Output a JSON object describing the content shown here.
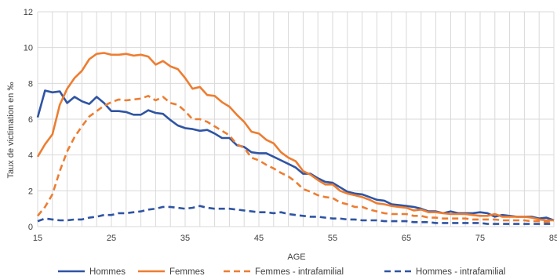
{
  "chart_data": {
    "type": "line",
    "title": "",
    "xlabel": "AGE",
    "ylabel": "Taux de victimation en ‰",
    "xlim": [
      15,
      85
    ],
    "ylim": [
      0,
      12
    ],
    "x_ticks": [
      15,
      25,
      35,
      45,
      55,
      65,
      75,
      85
    ],
    "y_ticks": [
      0,
      2,
      4,
      6,
      8,
      10,
      12
    ],
    "grid": "vertical-and-horizontal",
    "legend_position": "bottom",
    "x": [
      15,
      16,
      17,
      18,
      19,
      20,
      21,
      22,
      23,
      24,
      25,
      26,
      27,
      28,
      29,
      30,
      31,
      32,
      33,
      34,
      35,
      36,
      37,
      38,
      39,
      40,
      41,
      42,
      43,
      44,
      45,
      46,
      47,
      48,
      49,
      50,
      51,
      52,
      53,
      54,
      55,
      56,
      57,
      58,
      59,
      60,
      61,
      62,
      63,
      64,
      65,
      66,
      67,
      68,
      69,
      70,
      71,
      72,
      73,
      74,
      75,
      76,
      77,
      78,
      79,
      80,
      81,
      82,
      83,
      84,
      85
    ],
    "series": [
      {
        "name": "Hommes",
        "color": "#2f54a3",
        "dash": "solid",
        "values": [
          6.1,
          7.6,
          7.5,
          7.55,
          6.9,
          7.25,
          7.0,
          6.85,
          7.25,
          6.9,
          6.45,
          6.45,
          6.4,
          6.25,
          6.25,
          6.5,
          6.35,
          6.3,
          5.95,
          5.65,
          5.5,
          5.45,
          5.35,
          5.4,
          5.2,
          4.95,
          4.95,
          4.55,
          4.45,
          4.15,
          4.1,
          4.1,
          3.9,
          3.7,
          3.5,
          3.3,
          2.95,
          2.95,
          2.7,
          2.5,
          2.45,
          2.2,
          1.95,
          1.85,
          1.8,
          1.65,
          1.5,
          1.45,
          1.25,
          1.2,
          1.15,
          1.1,
          1.0,
          0.85,
          0.85,
          0.75,
          0.85,
          0.75,
          0.75,
          0.75,
          0.8,
          0.75,
          0.55,
          0.65,
          0.6,
          0.55,
          0.55,
          0.55,
          0.45,
          0.5,
          0.35
        ]
      },
      {
        "name": "Femmes",
        "color": "#ed7d31",
        "dash": "solid",
        "values": [
          3.9,
          4.6,
          5.15,
          6.8,
          7.7,
          8.3,
          8.7,
          9.35,
          9.65,
          9.7,
          9.6,
          9.6,
          9.65,
          9.55,
          9.6,
          9.5,
          9.05,
          9.25,
          8.95,
          8.8,
          8.3,
          7.7,
          7.8,
          7.35,
          7.3,
          6.95,
          6.7,
          6.25,
          5.85,
          5.3,
          5.2,
          4.85,
          4.65,
          4.15,
          3.85,
          3.65,
          3.1,
          2.9,
          2.6,
          2.35,
          2.35,
          2.0,
          1.85,
          1.75,
          1.65,
          1.5,
          1.3,
          1.25,
          1.15,
          1.1,
          1.05,
          0.9,
          0.95,
          0.8,
          0.8,
          0.75,
          0.7,
          0.7,
          0.7,
          0.65,
          0.6,
          0.6,
          0.7,
          0.55,
          0.55,
          0.55,
          0.55,
          0.5,
          0.4,
          0.35,
          0.35
        ]
      },
      {
        "name": "Femmes - intrafamilial",
        "color": "#ed7d31",
        "dash": "dashed",
        "values": [
          0.6,
          1.1,
          1.8,
          3.1,
          4.2,
          5.0,
          5.6,
          6.15,
          6.45,
          6.75,
          6.95,
          7.1,
          7.05,
          7.1,
          7.15,
          7.3,
          7.05,
          7.25,
          6.9,
          6.8,
          6.45,
          6.0,
          6.0,
          5.85,
          5.6,
          5.35,
          5.1,
          4.6,
          4.4,
          3.85,
          3.7,
          3.45,
          3.25,
          3.0,
          2.8,
          2.5,
          2.1,
          1.95,
          1.75,
          1.65,
          1.6,
          1.35,
          1.25,
          1.1,
          1.1,
          0.95,
          0.85,
          0.75,
          0.7,
          0.7,
          0.7,
          0.6,
          0.6,
          0.5,
          0.5,
          0.45,
          0.45,
          0.45,
          0.45,
          0.4,
          0.4,
          0.4,
          0.4,
          0.35,
          0.35,
          0.35,
          0.35,
          0.3,
          0.3,
          0.25,
          0.3
        ]
      },
      {
        "name": "Hommes - intrafamilial",
        "color": "#2f54a3",
        "dash": "dashed",
        "values": [
          0.3,
          0.45,
          0.4,
          0.35,
          0.35,
          0.4,
          0.4,
          0.5,
          0.55,
          0.65,
          0.65,
          0.75,
          0.75,
          0.8,
          0.85,
          0.95,
          1.0,
          1.1,
          1.1,
          1.05,
          1.0,
          1.05,
          1.15,
          1.05,
          1.0,
          1.0,
          1.0,
          0.95,
          0.9,
          0.85,
          0.8,
          0.8,
          0.75,
          0.8,
          0.7,
          0.65,
          0.6,
          0.55,
          0.55,
          0.5,
          0.45,
          0.45,
          0.4,
          0.4,
          0.35,
          0.35,
          0.35,
          0.3,
          0.3,
          0.3,
          0.3,
          0.25,
          0.25,
          0.25,
          0.2,
          0.2,
          0.2,
          0.2,
          0.2,
          0.2,
          0.2,
          0.15,
          0.15,
          0.15,
          0.15,
          0.15,
          0.15,
          0.15,
          0.15,
          0.15,
          0.15
        ]
      }
    ]
  }
}
